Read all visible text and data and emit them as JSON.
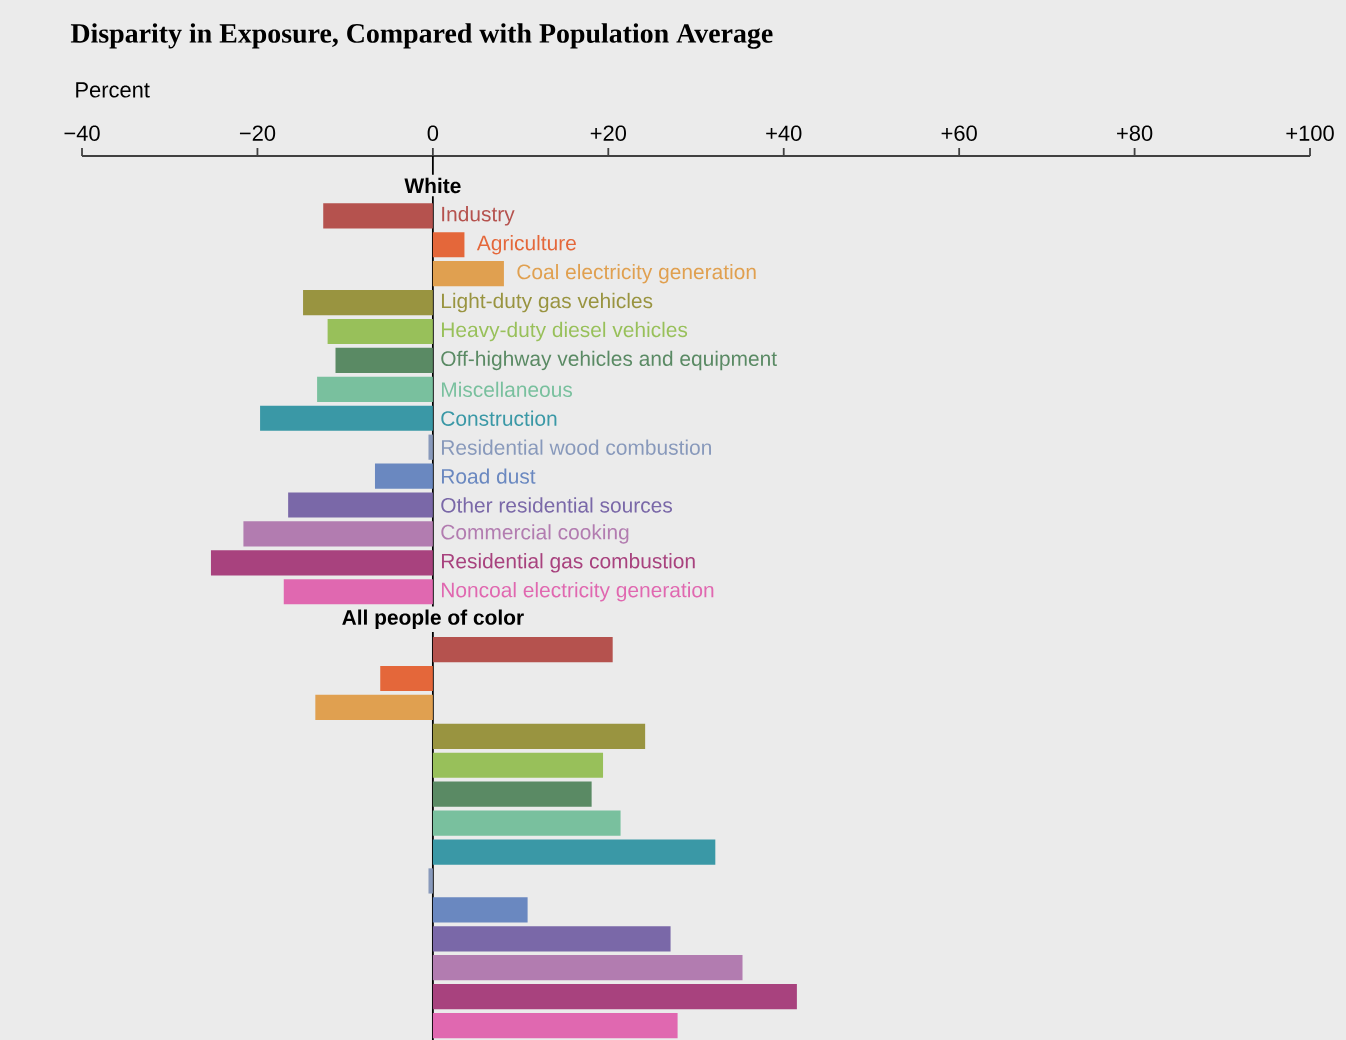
{
  "chart_data": {
    "type": "bar",
    "orientation": "horizontal",
    "title": "Disparity in Exposure, Compared with Population Average",
    "xlabel": "Percent",
    "categories": [
      "Industry",
      "Agriculture",
      "Coal electricity generation",
      "Light-duty gas vehicles",
      "Heavy-duty diesel vehicles",
      "Off-highway vehicles and equipment",
      "Miscellaneous",
      "Construction",
      "Residential wood combustion",
      "Road dust",
      "Other residential sources",
      "Commercial cooking",
      "Residential gas combustion",
      "Noncoal electricity generation",
      null,
      null,
      null,
      null,
      null,
      null,
      null,
      null,
      null,
      null,
      null,
      null,
      null,
      null,
      null
    ],
    "series": [
      {
        "name": "White",
        "values": [
          -12.5,
          3.6,
          8.1,
          -14.8,
          -12.0,
          -11.1,
          -13.2,
          -19.7,
          -0.5,
          -6.6,
          -16.5,
          -21.6,
          -25.3,
          -17.0,
          null,
          null,
          null,
          null,
          null,
          null,
          null,
          null,
          null,
          null,
          null,
          null,
          null,
          null,
          null
        ],
        "colors": [
          "#b5524e",
          "#e4673a",
          "#e0a050",
          "#999440",
          "#98c05a",
          "#5a8a64",
          "#79c09e",
          "#3a98a6",
          "#8899bb",
          "#6a88c0",
          "#7a68a8",
          "#b27cb0",
          "#a8427e",
          "#e068b0",
          null,
          null,
          null,
          null,
          null,
          null,
          null,
          null,
          null,
          null,
          null,
          null,
          null,
          null,
          null
        ]
      },
      {
        "name": "All people of color",
        "values": [
          null,
          null,
          null,
          null,
          null,
          null,
          null,
          null,
          null,
          null,
          null,
          null,
          null,
          null,
          null,
          20.5,
          -6.0,
          -13.4,
          24.2,
          19.4,
          18.1,
          21.4,
          32.2,
          -0.5,
          10.8,
          27.1,
          35.3,
          41.5,
          27.9
        ],
        "colors": [
          null,
          null,
          null,
          null,
          null,
          null,
          null,
          null,
          null,
          null,
          null,
          null,
          null,
          null,
          null,
          "#b5524e",
          "#e4673a",
          "#e0a050",
          "#999440",
          "#98c05a",
          "#5a8a64",
          "#79c09e",
          "#3a98a6",
          "#8899bb",
          "#6a88c0",
          "#7a68a8",
          "#b27cb0",
          "#a8427e",
          "#e068b0"
        ]
      }
    ],
    "xlim": [
      -40,
      100
    ],
    "xticks": [
      {
        "value": -40,
        "label": "−40"
      },
      {
        "value": -20,
        "label": "−20"
      },
      0,
      {
        "value": 20,
        "label": "+20"
      },
      {
        "value": 40,
        "label": "+40"
      },
      {
        "value": 60,
        "label": "+60"
      },
      {
        "value": 80,
        "label": "+80"
      },
      {
        "value": 100,
        "label": "+100"
      }
    ]
  }
}
